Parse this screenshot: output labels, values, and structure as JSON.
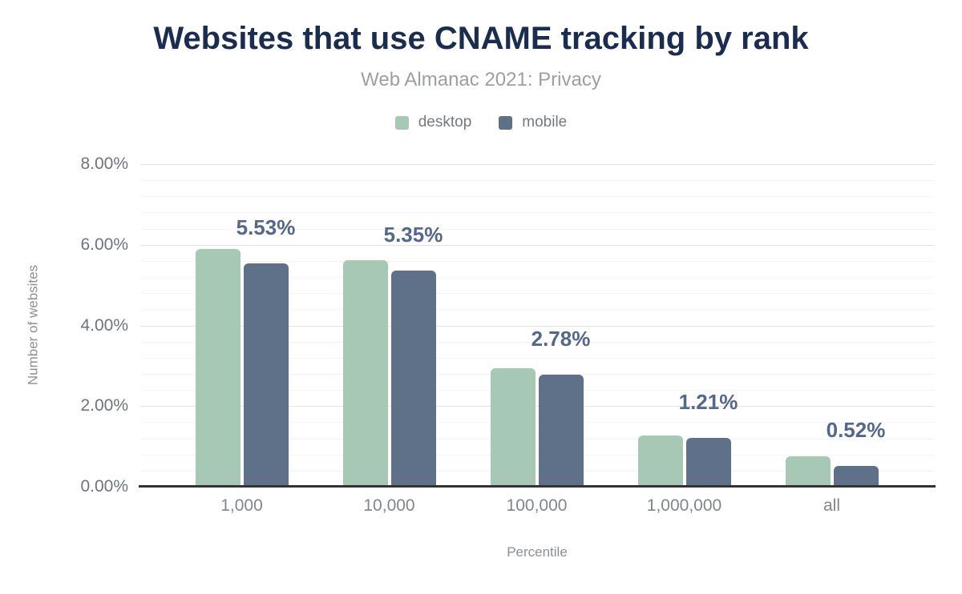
{
  "header": {
    "title": "Websites that use CNAME tracking by rank",
    "subtitle": "Web Almanac 2021: Privacy"
  },
  "chart_data": {
    "type": "bar",
    "title": "Websites that use CNAME tracking by rank",
    "subtitle": "Web Almanac 2021: Privacy",
    "categories": [
      "1,000",
      "10,000",
      "100,000",
      "1,000,000",
      "all"
    ],
    "series": [
      {
        "name": "desktop",
        "color": "#a6c8b5",
        "values": [
          5.9,
          5.62,
          2.93,
          1.27,
          0.75
        ]
      },
      {
        "name": "mobile",
        "color": "#5e7189",
        "values": [
          5.53,
          5.35,
          2.78,
          1.21,
          0.52
        ]
      }
    ],
    "annotations": {
      "series": "mobile",
      "labels": [
        "5.53%",
        "5.35%",
        "2.78%",
        "1.21%",
        "0.52%"
      ],
      "color": "#54678c"
    },
    "xlabel": "Percentile",
    "ylabel": "Number of websites",
    "ylim": [
      0,
      8
    ],
    "yticks": {
      "values": [
        0,
        2,
        4,
        6,
        8
      ],
      "labels": [
        "0.00%",
        "2.00%",
        "4.00%",
        "6.00%",
        "8.00%"
      ]
    },
    "minor_tick_interval": 0.4,
    "grid": true,
    "legend_position": "top",
    "major_grid_color": "#e2e2e2",
    "minor_grid_color": "#f4f4f4"
  }
}
